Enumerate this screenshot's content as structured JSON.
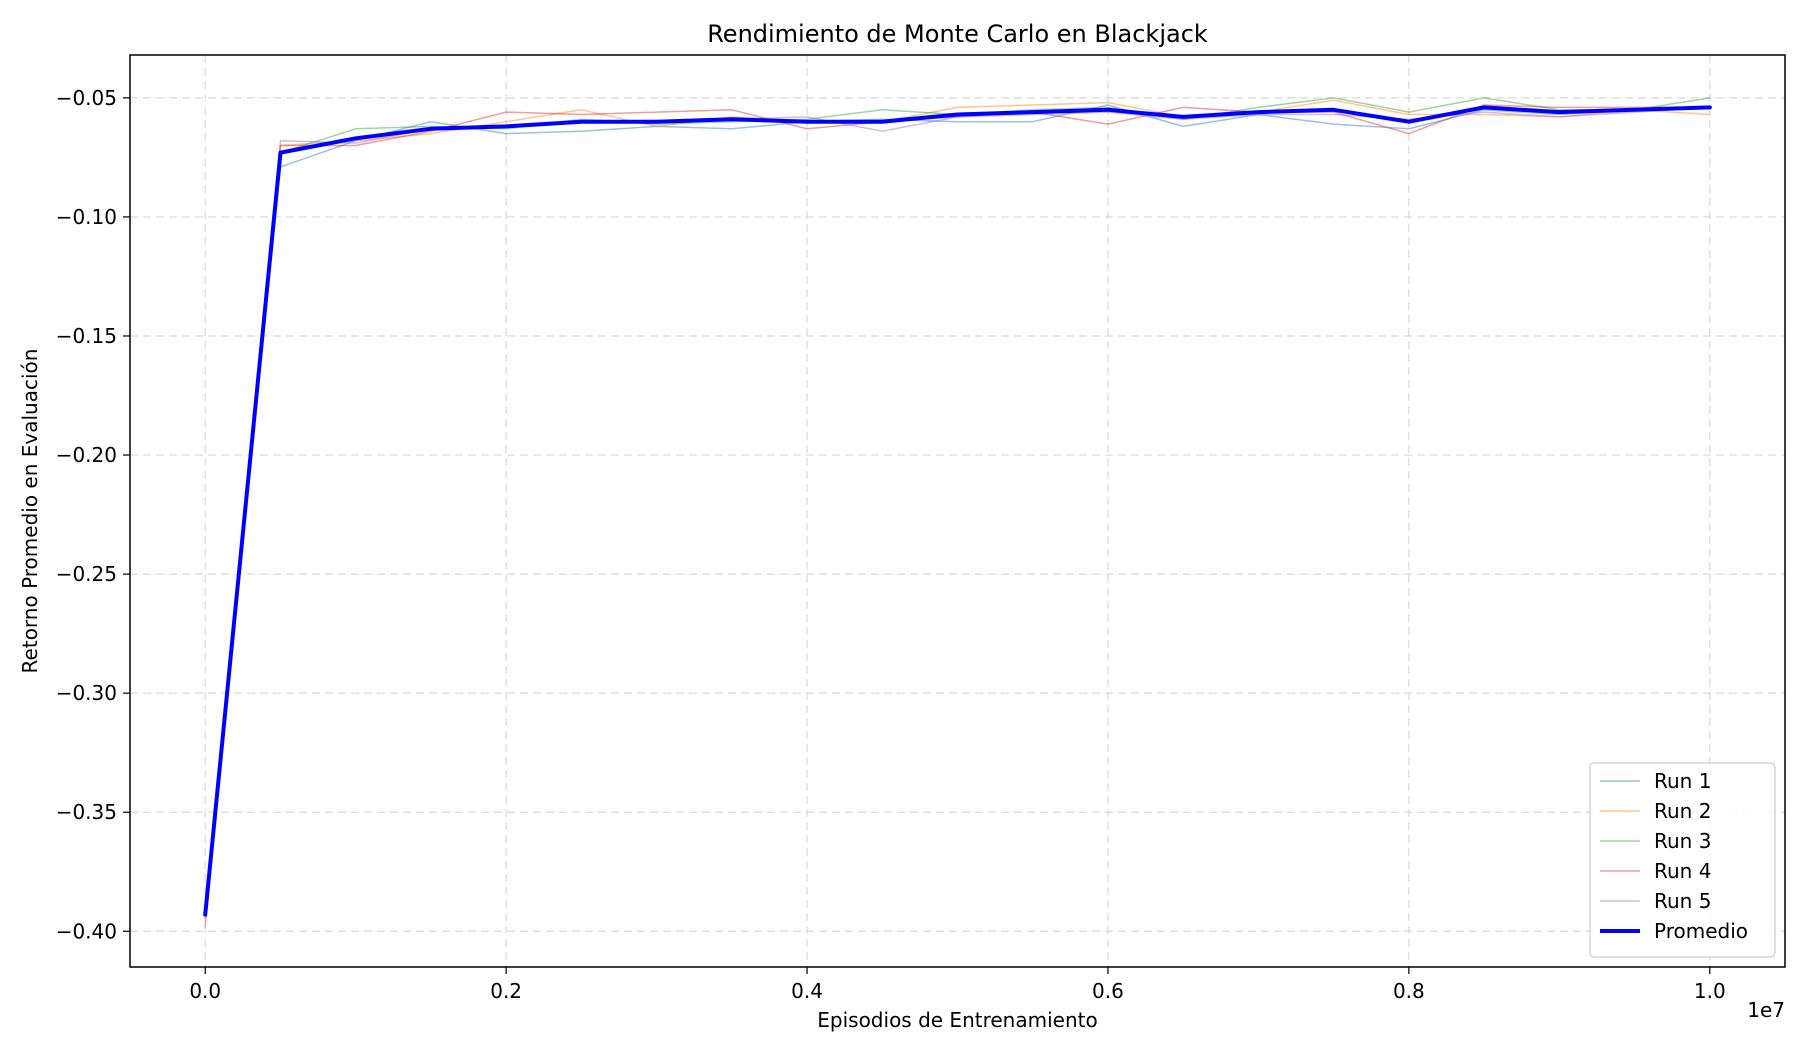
{
  "chart_data": {
    "type": "line",
    "title": "Rendimiento de Monte Carlo en Blackjack",
    "xlabel": "Episodios de Entrenamiento",
    "ylabel": "Retorno Promedio en Evaluación",
    "x_offset_label": "1e7",
    "xlim": [
      -0.05,
      1.05
    ],
    "ylim": [
      -0.415,
      -0.032
    ],
    "xticks": [
      0.0,
      0.2,
      0.4,
      0.6,
      0.8,
      1.0
    ],
    "xtick_labels": [
      "0.0",
      "0.2",
      "0.4",
      "0.6",
      "0.8",
      "1.0"
    ],
    "yticks": [
      -0.4,
      -0.35,
      -0.3,
      -0.25,
      -0.2,
      -0.15,
      -0.1,
      -0.05
    ],
    "ytick_labels": [
      "−0.40",
      "−0.35",
      "−0.30",
      "−0.25",
      "−0.20",
      "−0.15",
      "−0.10",
      "−0.05"
    ],
    "grid": true,
    "legend_position": "bottom-right",
    "x": [
      0.0,
      0.05,
      0.1,
      0.15,
      0.2,
      0.25,
      0.3,
      0.35,
      0.4,
      0.45,
      0.5,
      0.55,
      0.6,
      0.65,
      0.7,
      0.75,
      0.8,
      0.85,
      0.9,
      0.95,
      1.0
    ],
    "series": [
      {
        "name": "Run 1",
        "color": "#1f77b4",
        "width": 1.5,
        "opacity": 0.45,
        "values": [
          -0.392,
          -0.079,
          -0.068,
          -0.06,
          -0.065,
          -0.064,
          -0.062,
          -0.063,
          -0.06,
          -0.059,
          -0.06,
          -0.06,
          -0.053,
          -0.062,
          -0.057,
          -0.061,
          -0.063,
          -0.055,
          -0.057,
          -0.055,
          -0.054
        ]
      },
      {
        "name": "Run 2",
        "color": "#ff7f0e",
        "width": 1.5,
        "opacity": 0.45,
        "values": [
          -0.393,
          -0.07,
          -0.068,
          -0.065,
          -0.06,
          -0.055,
          -0.062,
          -0.058,
          -0.06,
          -0.06,
          -0.054,
          -0.053,
          -0.052,
          -0.058,
          -0.056,
          -0.051,
          -0.057,
          -0.057,
          -0.058,
          -0.055,
          -0.057
        ]
      },
      {
        "name": "Run 3",
        "color": "#2ca02c",
        "width": 1.5,
        "opacity": 0.45,
        "values": [
          -0.393,
          -0.073,
          -0.063,
          -0.062,
          -0.063,
          -0.059,
          -0.061,
          -0.06,
          -0.059,
          -0.055,
          -0.057,
          -0.055,
          -0.054,
          -0.059,
          -0.054,
          -0.05,
          -0.056,
          -0.05,
          -0.055,
          -0.055,
          -0.05
        ]
      },
      {
        "name": "Run 4",
        "color": "#d62728",
        "width": 1.5,
        "opacity": 0.45,
        "values": [
          -0.398,
          -0.07,
          -0.07,
          -0.064,
          -0.056,
          -0.057,
          -0.056,
          -0.055,
          -0.063,
          -0.06,
          -0.058,
          -0.056,
          -0.061,
          -0.054,
          -0.056,
          -0.056,
          -0.065,
          -0.053,
          -0.054,
          -0.054,
          -0.054
        ]
      },
      {
        "name": "Run 5",
        "color": "#9467bd",
        "width": 1.5,
        "opacity": 0.45,
        "values": [
          -0.394,
          -0.068,
          -0.069,
          -0.063,
          -0.062,
          -0.06,
          -0.06,
          -0.059,
          -0.058,
          -0.064,
          -0.058,
          -0.057,
          -0.056,
          -0.059,
          -0.057,
          -0.057,
          -0.059,
          -0.056,
          -0.058,
          -0.056,
          -0.054
        ]
      },
      {
        "name": "Promedio",
        "color": "#0000ff",
        "width": 4,
        "opacity": 1,
        "values": [
          -0.393,
          -0.073,
          -0.067,
          -0.063,
          -0.062,
          -0.06,
          -0.06,
          -0.059,
          -0.06,
          -0.06,
          -0.057,
          -0.056,
          -0.055,
          -0.058,
          -0.056,
          -0.055,
          -0.06,
          -0.054,
          -0.056,
          -0.055,
          -0.054
        ]
      }
    ]
  }
}
